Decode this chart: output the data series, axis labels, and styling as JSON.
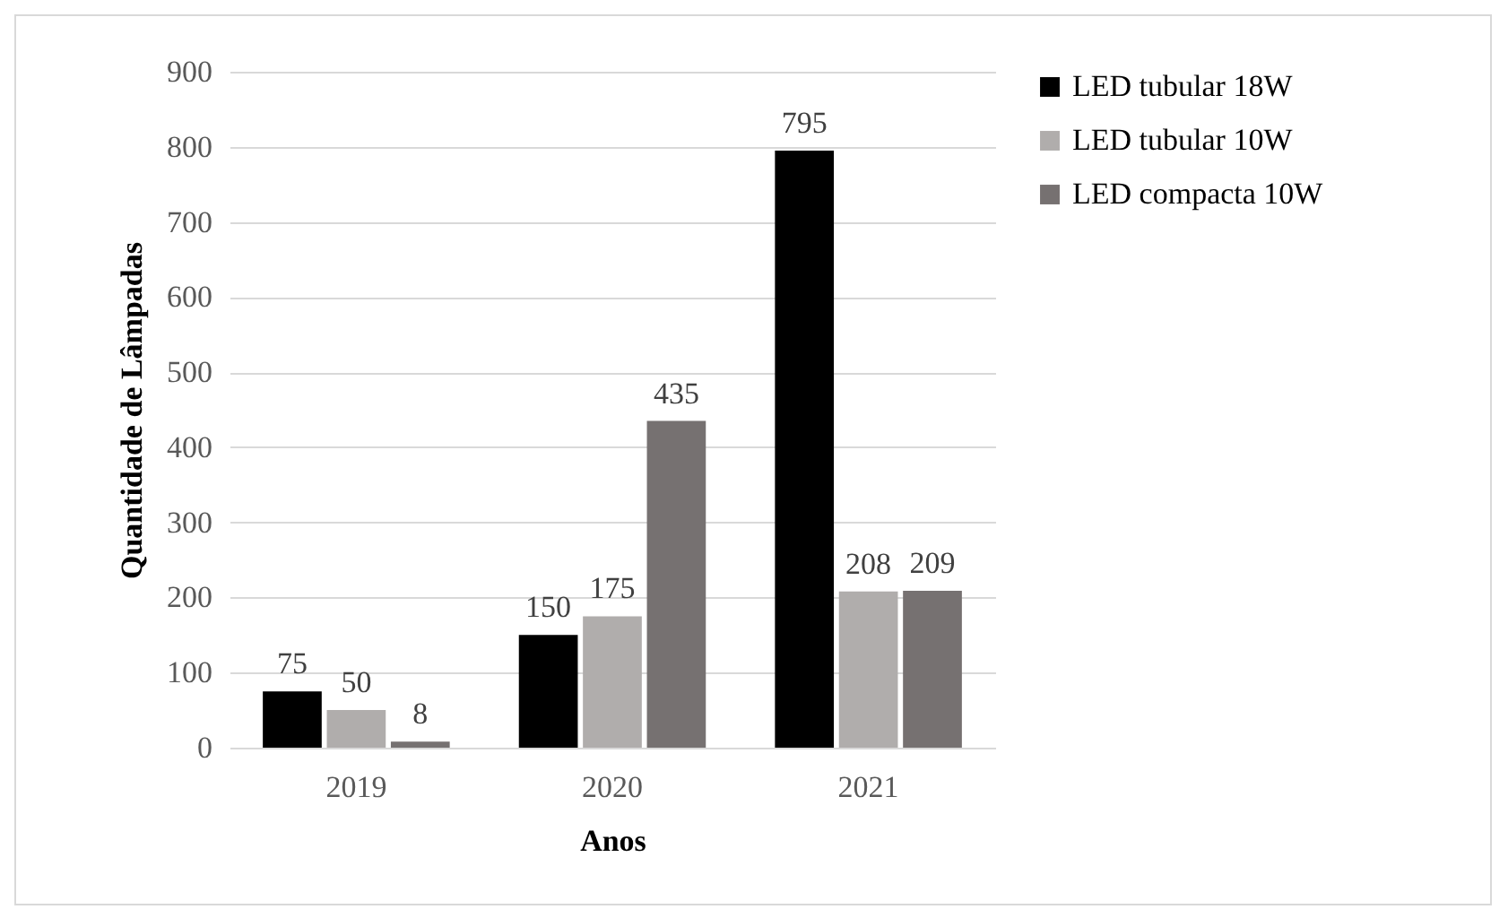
{
  "chart_data": {
    "type": "bar",
    "xlabel": "Anos",
    "ylabel": "Quantidade de Lâmpadas",
    "categories": [
      "2019",
      "2020",
      "2021"
    ],
    "series": [
      {
        "name": "LED tubular 18W",
        "color": "#000000",
        "values": [
          75,
          150,
          795
        ]
      },
      {
        "name": "LED tubular 10W",
        "color": "#b0adac",
        "values": [
          50,
          175,
          208
        ]
      },
      {
        "name": "LED compacta 10W",
        "color": "#767171",
        "values": [
          8,
          435,
          209
        ]
      }
    ],
    "ylim": [
      0,
      900
    ],
    "yticks": [
      0,
      100,
      200,
      300,
      400,
      500,
      600,
      700,
      800,
      900
    ],
    "grid": "y",
    "legend": "right",
    "data_labels": true
  }
}
